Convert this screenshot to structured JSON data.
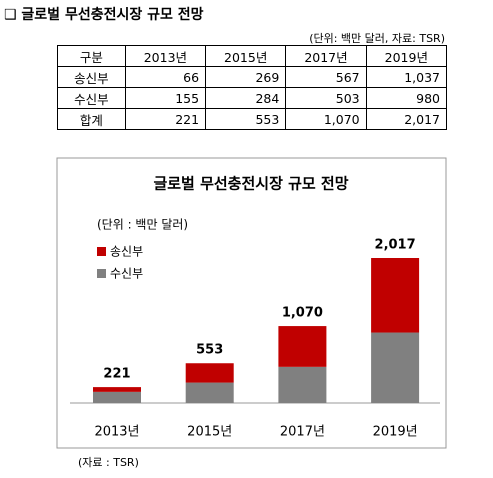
{
  "header": {
    "title": "❑ 글로벌 무선충전시장 규모 전망",
    "note": "(단위: 백만 달러, 자료: TSR)"
  },
  "table": {
    "rows": [
      [
        "구분",
        "2013년",
        "2015년",
        "2017년",
        "2019년"
      ],
      [
        "송신부",
        "66",
        "269",
        "567",
        "1,037"
      ],
      [
        "수신부",
        "155",
        "284",
        "503",
        "980"
      ],
      [
        "합계",
        "221",
        "553",
        "1,070",
        "2,017"
      ]
    ]
  },
  "chart_data": {
    "type": "bar",
    "stacked": true,
    "title": "글로벌 무선충전시장 규모 전망",
    "unit_note": "(단위 : 백만 달러)",
    "categories": [
      "2013년",
      "2015년",
      "2017년",
      "2019년"
    ],
    "series": [
      {
        "name": "송신부",
        "color": "#c00000",
        "values": [
          66,
          269,
          567,
          1037
        ]
      },
      {
        "name": "수신부",
        "color": "#808080",
        "values": [
          155,
          284,
          503,
          980
        ]
      }
    ],
    "totals": [
      221,
      553,
      1070,
      2017
    ],
    "total_labels": [
      "221",
      "553",
      "1,070",
      "2,017"
    ]
  },
  "source": "(자료 : TSR)"
}
